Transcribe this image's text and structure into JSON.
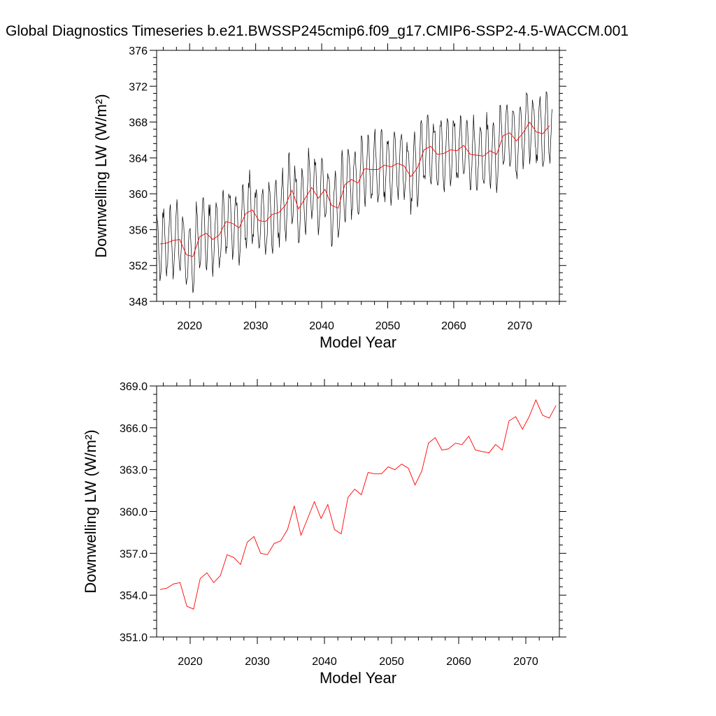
{
  "title": "Global Diagnostics Timeseries b.e21.BWSSP245cmip6.f09_g17.CMIP6-SSP2-4.5-WACCM.001",
  "colors": {
    "monthly": "#000000",
    "annual": "#ff0000"
  },
  "chart_data": [
    {
      "type": "line",
      "xlabel": "Model Year",
      "ylabel": "Downwelling LW (W/m²)",
      "xlim": [
        2015,
        2076
      ],
      "ylim": [
        348,
        376
      ],
      "xticks": [
        "2020",
        "2030",
        "2040",
        "2050",
        "2060",
        "2070"
      ],
      "yticks": [
        "348",
        "352",
        "356",
        "360",
        "364",
        "368",
        "372",
        "376"
      ],
      "grid": false,
      "series": [
        {
          "color": "#000000",
          "style": "monthly",
          "note_values": "monthly series oscillates seasonally about the annual means with a half-range of about 3.5 W/m²",
          "x_start": 2015,
          "seasonal_amplitude": 3.5
        },
        {
          "color": "#ff0000",
          "style": "annual",
          "x": [
            2015.5,
            2016.5,
            2017.5,
            2018.5,
            2019.5,
            2020.5,
            2021.5,
            2022.5,
            2023.5,
            2024.5,
            2025.5,
            2026.5,
            2027.5,
            2028.5,
            2029.5,
            2030.5,
            2031.5,
            2032.5,
            2033.5,
            2034.5,
            2035.5,
            2036.5,
            2037.5,
            2038.5,
            2039.5,
            2040.5,
            2041.5,
            2042.5,
            2043.5,
            2044.5,
            2045.5,
            2046.5,
            2047.5,
            2048.5,
            2049.5,
            2050.5,
            2051.5,
            2052.5,
            2053.5,
            2054.5,
            2055.5,
            2056.5,
            2057.5,
            2058.5,
            2059.5,
            2060.5,
            2061.5,
            2062.5,
            2063.5,
            2064.5,
            2065.5,
            2066.5,
            2067.5,
            2068.5,
            2069.5,
            2070.5,
            2071.5,
            2072.5,
            2073.5,
            2074.5
          ],
          "values": [
            354.4,
            354.5,
            354.8,
            354.9,
            353.2,
            353.0,
            355.2,
            355.6,
            354.9,
            355.4,
            356.9,
            356.7,
            356.2,
            357.8,
            358.2,
            357.0,
            356.9,
            357.7,
            357.9,
            358.7,
            360.4,
            358.3,
            359.5,
            360.7,
            359.5,
            360.5,
            358.7,
            358.4,
            361.0,
            361.6,
            361.2,
            362.8,
            362.7,
            362.7,
            363.2,
            363.0,
            363.4,
            363.1,
            361.9,
            362.9,
            364.9,
            365.3,
            364.4,
            364.5,
            364.9,
            364.8,
            365.4,
            364.4,
            364.3,
            364.2,
            364.8,
            364.4,
            366.5,
            366.8,
            365.9,
            366.8,
            368.0,
            366.9,
            366.7,
            367.6
          ]
        }
      ]
    },
    {
      "type": "line",
      "xlabel": "Model Year",
      "ylabel": "Downwelling LW (W/m²)",
      "xlim": [
        2015,
        2075
      ],
      "ylim": [
        351.0,
        369.0
      ],
      "xticks": [
        "2020",
        "2030",
        "2040",
        "2050",
        "2060",
        "2070"
      ],
      "yticks": [
        "351.0",
        "354.0",
        "357.0",
        "360.0",
        "363.0",
        "366.0",
        "369.0"
      ],
      "grid": false,
      "series": [
        {
          "color": "#ff0000",
          "style": "annual",
          "x": [
            2015.5,
            2016.5,
            2017.5,
            2018.5,
            2019.5,
            2020.5,
            2021.5,
            2022.5,
            2023.5,
            2024.5,
            2025.5,
            2026.5,
            2027.5,
            2028.5,
            2029.5,
            2030.5,
            2031.5,
            2032.5,
            2033.5,
            2034.5,
            2035.5,
            2036.5,
            2037.5,
            2038.5,
            2039.5,
            2040.5,
            2041.5,
            2042.5,
            2043.5,
            2044.5,
            2045.5,
            2046.5,
            2047.5,
            2048.5,
            2049.5,
            2050.5,
            2051.5,
            2052.5,
            2053.5,
            2054.5,
            2055.5,
            2056.5,
            2057.5,
            2058.5,
            2059.5,
            2060.5,
            2061.5,
            2062.5,
            2063.5,
            2064.5,
            2065.5,
            2066.5,
            2067.5,
            2068.5,
            2069.5,
            2070.5,
            2071.5,
            2072.5,
            2073.5,
            2074.5
          ],
          "values": [
            354.4,
            354.5,
            354.8,
            354.9,
            353.2,
            353.0,
            355.2,
            355.6,
            354.9,
            355.4,
            356.9,
            356.7,
            356.2,
            357.8,
            358.2,
            357.0,
            356.9,
            357.7,
            357.9,
            358.7,
            360.4,
            358.3,
            359.5,
            360.7,
            359.5,
            360.5,
            358.7,
            358.4,
            361.0,
            361.6,
            361.2,
            362.8,
            362.7,
            362.7,
            363.2,
            363.0,
            363.4,
            363.1,
            361.9,
            362.9,
            364.9,
            365.3,
            364.4,
            364.5,
            364.9,
            364.8,
            365.4,
            364.4,
            364.3,
            364.2,
            364.8,
            364.4,
            366.5,
            366.8,
            365.9,
            366.8,
            368.0,
            366.9,
            366.7,
            367.6
          ]
        }
      ]
    }
  ]
}
